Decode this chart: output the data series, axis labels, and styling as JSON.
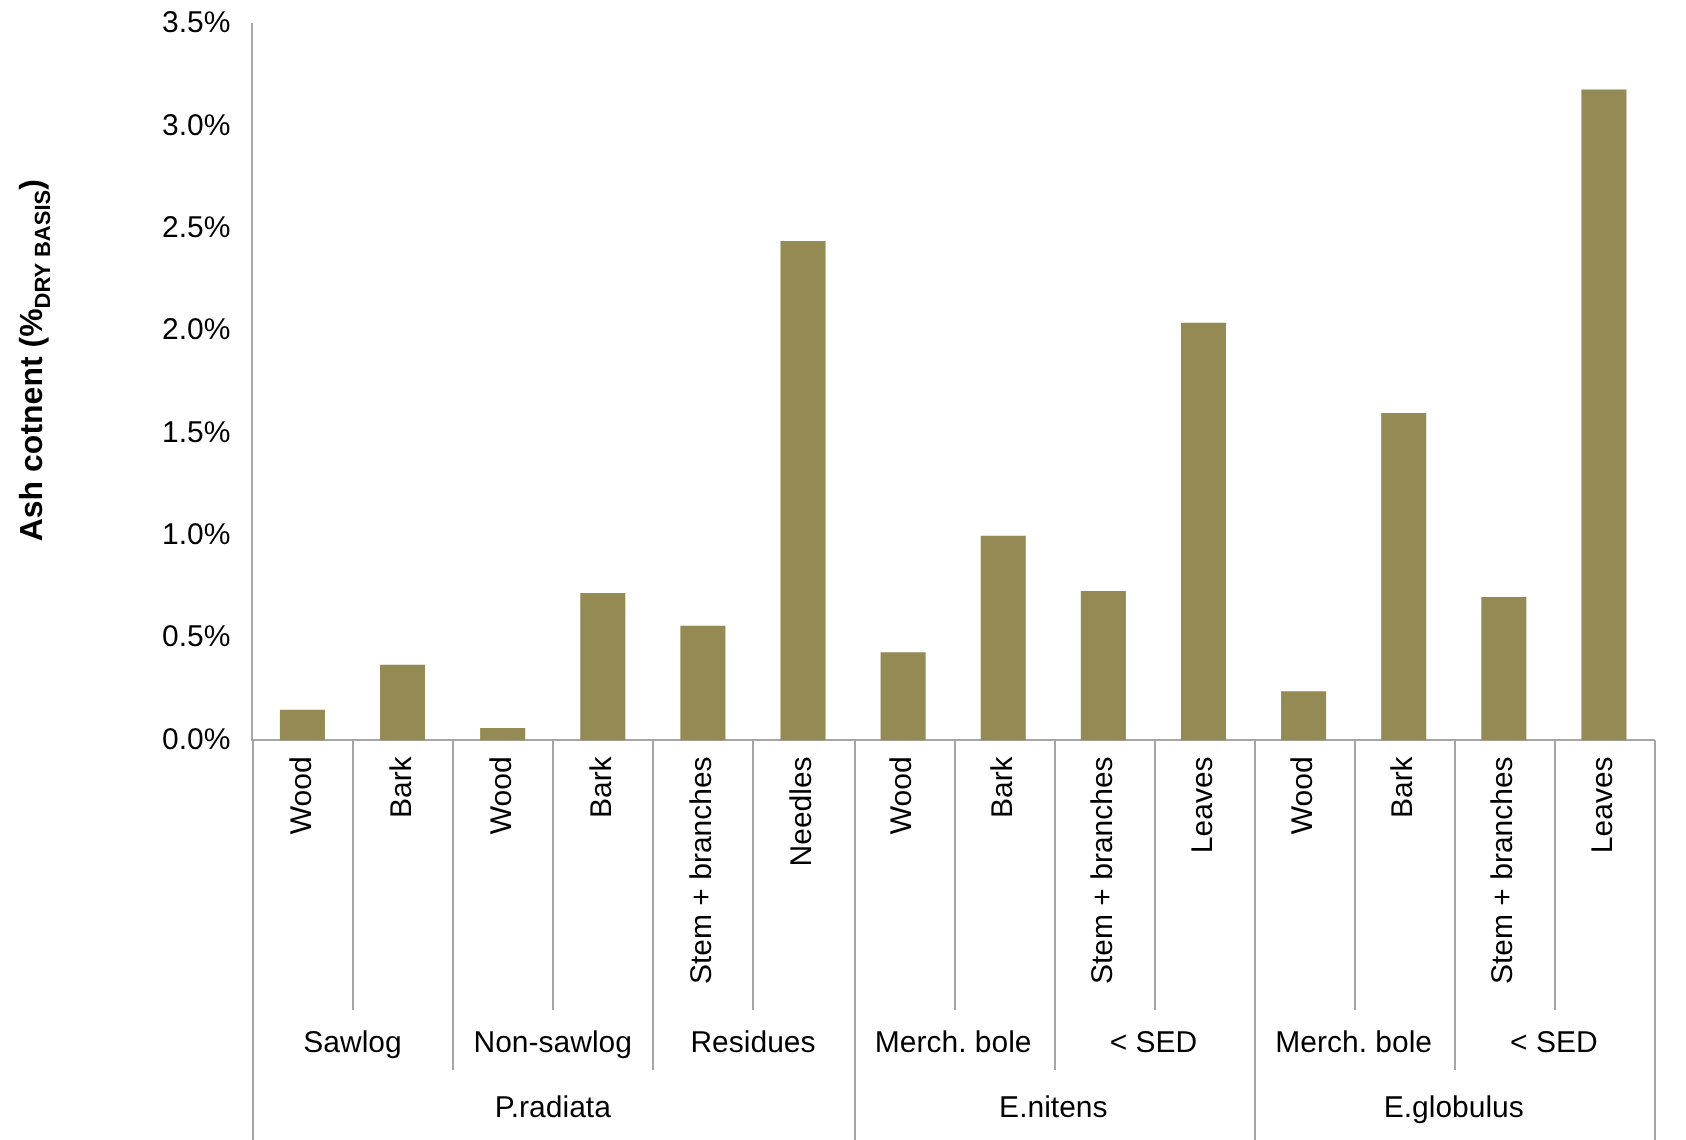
{
  "chart_data": {
    "type": "bar",
    "ylabel": "Ash cotnent (%$_{DRY BASIS}$)",
    "categories": [
      "Wood",
      "Bark",
      "Wood",
      "Bark",
      "Stem + branches",
      "Needles",
      "Wood",
      "Bark",
      "Stem + branches",
      "Leaves",
      "Wood",
      "Bark",
      "Stem + branches",
      "Leaves"
    ],
    "values": [
      0.15,
      0.37,
      0.06,
      0.72,
      0.56,
      2.44,
      0.43,
      1.0,
      0.73,
      2.04,
      0.24,
      1.6,
      0.7,
      3.18
    ],
    "color": "#948a54",
    "ylim": [
      0,
      3.5
    ],
    "yticks": [
      {
        "value": 0,
        "label": "0.0%"
      },
      {
        "value": 0.5,
        "label": "0.5%"
      },
      {
        "value": 1,
        "label": "1.0%"
      },
      {
        "value": 1.5,
        "label": "1.5%"
      },
      {
        "value": 2,
        "label": "2.0%"
      },
      {
        "value": 2.5,
        "label": "2.5%"
      },
      {
        "value": 3,
        "label": "3.0%"
      },
      {
        "value": 3.5,
        "label": "3.5%"
      }
    ],
    "annotations": [
      "Sawlog",
      "Non-sawlog",
      "Residues",
      "Merch. bole",
      "< SED",
      "Merch. bole",
      "< SED",
      "P.radiata",
      "E.nitens",
      "E.globulus"
    ],
    "grid": false,
    "legend": false
  }
}
